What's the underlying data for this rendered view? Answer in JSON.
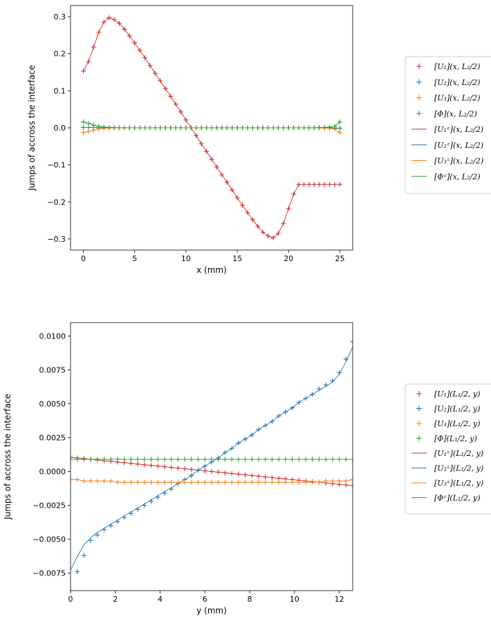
{
  "chart_data": [
    {
      "type": "line",
      "xlabel": "x (mm)",
      "ylabel": "Jumps of accross the interface",
      "xlim": [
        -1.25,
        26.25
      ],
      "ylim": [
        -0.33,
        0.33
      ],
      "xticks": [
        0,
        5,
        10,
        15,
        20,
        25
      ],
      "xtick_labels": [
        "0",
        "5",
        "10",
        "15",
        "20",
        "25"
      ],
      "yticks": [
        -0.3,
        -0.2,
        -0.1,
        0.0,
        0.1,
        0.2,
        0.3
      ],
      "ytick_labels": [
        "−0.3",
        "−0.2",
        "−0.1",
        "0.0",
        "0.1",
        "0.2",
        "0.3"
      ],
      "grid": false,
      "legend_placement": "right",
      "x": [
        0,
        0.5,
        1,
        1.5,
        2,
        2.5,
        3,
        3.5,
        4,
        4.5,
        5,
        5.5,
        6,
        6.5,
        7,
        7.5,
        8,
        8.5,
        9,
        9.5,
        10,
        10.5,
        11,
        11.5,
        12,
        12.5,
        13,
        13.5,
        14,
        14.5,
        15,
        15.5,
        16,
        16.5,
        17,
        17.5,
        18,
        18.5,
        19,
        19.5,
        20,
        20.5,
        21,
        21.5,
        22,
        22.5,
        23,
        23.5,
        24,
        24.5,
        25
      ],
      "series": [
        {
          "name": "[U₁](x, L₂/2)",
          "marker": "+",
          "color": "#d62728",
          "values": [
            0.153,
            0.179,
            0.218,
            0.258,
            0.285,
            0.297,
            0.292,
            0.282,
            0.266,
            0.248,
            0.229,
            0.209,
            0.189,
            0.168,
            0.147,
            0.127,
            0.106,
            0.085,
            0.064,
            0.043,
            0.021,
            0.0,
            -0.021,
            -0.043,
            -0.064,
            -0.085,
            -0.106,
            -0.127,
            -0.147,
            -0.168,
            -0.189,
            -0.209,
            -0.229,
            -0.248,
            -0.266,
            -0.282,
            -0.292,
            -0.297,
            -0.285,
            -0.258,
            -0.218,
            -0.179,
            -0.153,
            -0.153,
            -0.153,
            -0.153,
            -0.153,
            -0.153,
            -0.153,
            -0.153,
            -0.153
          ]
        },
        {
          "name": "[U₂](x, L₂/2)",
          "marker": "+",
          "color": "#1f77b4",
          "values": [
            0.001,
            0.0008,
            0.0005,
            0.0003,
            0.0002,
            0.0001,
            0,
            0,
            0,
            0,
            0,
            0,
            0,
            0,
            0,
            0,
            0,
            0,
            0,
            0,
            0,
            0,
            0,
            0,
            0,
            0,
            0,
            0,
            0,
            0,
            0,
            0,
            0,
            0,
            0,
            0,
            0,
            0,
            0,
            0,
            0,
            0,
            0,
            0,
            0,
            0,
            -0.0001,
            -0.0002,
            -0.0003,
            -0.0005,
            -0.001
          ]
        },
        {
          "name": "[U₃](x, L₂/2)",
          "marker": "+",
          "color": "#ff7f0e",
          "values": [
            -0.013,
            -0.01,
            -0.006,
            -0.003,
            -0.0015,
            -0.0007,
            -0.0003,
            -0.0002,
            -0.0001,
            0,
            0,
            0,
            0,
            0,
            0,
            0,
            0,
            0,
            0,
            0,
            0,
            0,
            0,
            0,
            0,
            0,
            0,
            0,
            0,
            0,
            0,
            0,
            0,
            0,
            0,
            0,
            0,
            0,
            0,
            0,
            0,
            0,
            0,
            0,
            -0.0001,
            -0.0002,
            -0.0003,
            -0.0007,
            -0.0015,
            -0.003,
            -0.013
          ]
        },
        {
          "name": "[Φ](x, L₂/2)",
          "marker": "+",
          "color": "#2ca02c",
          "values": [
            0.016,
            0.012,
            0.007,
            0.004,
            0.002,
            0.001,
            0.0005,
            0.0002,
            0.0001,
            0,
            0,
            0,
            0,
            0,
            0,
            0,
            0,
            0,
            0,
            0,
            0,
            0,
            0,
            0,
            0,
            0,
            0,
            0,
            0,
            0,
            0,
            0,
            0,
            0,
            0,
            0,
            0,
            0,
            0,
            0,
            0,
            0,
            0,
            0,
            0.0001,
            0.0002,
            0.0005,
            0.001,
            0.002,
            0.004,
            0.016
          ]
        },
        {
          "name": "[U₁ᵋ](x, L₂/2)",
          "marker": "line",
          "color": "#d62728",
          "ref": 0
        },
        {
          "name": "[U₂ᵋ](x, L₂/2)",
          "marker": "line",
          "color": "#1f77b4",
          "ref": 1
        },
        {
          "name": "[U₃ᵋ](x, L₂/2)",
          "marker": "line",
          "color": "#ff7f0e",
          "ref": 2
        },
        {
          "name": "[Φᵋ](x, L₂/2)",
          "marker": "line",
          "color": "#2ca02c",
          "ref": 3
        }
      ]
    },
    {
      "type": "line",
      "xlabel": "y (mm)",
      "ylabel": "Jumps of accross the interface",
      "xlim": [
        0,
        12.6
      ],
      "ylim": [
        -0.0088,
        0.011
      ],
      "xticks": [
        0,
        2,
        4,
        6,
        8,
        10,
        12
      ],
      "xtick_labels": [
        "0",
        "2",
        "4",
        "6",
        "8",
        "10",
        "12"
      ],
      "yticks": [
        -0.0075,
        -0.005,
        -0.0025,
        0.0,
        0.0025,
        0.005,
        0.0075,
        0.01
      ],
      "ytick_labels": [
        "−0.0075",
        "−0.0050",
        "−0.0025",
        "0.0000",
        "0.0025",
        "0.0050",
        "0.0075",
        "0.0100"
      ],
      "grid": false,
      "legend_placement": "right",
      "x": [
        0,
        0.3,
        0.6,
        0.9,
        1.2,
        1.5,
        1.8,
        2.1,
        2.4,
        2.7,
        3.0,
        3.3,
        3.6,
        3.9,
        4.2,
        4.5,
        4.8,
        5.1,
        5.4,
        5.7,
        6.0,
        6.3,
        6.6,
        6.9,
        7.2,
        7.5,
        7.8,
        8.1,
        8.4,
        8.7,
        9.0,
        9.3,
        9.6,
        9.9,
        10.2,
        10.5,
        10.8,
        11.1,
        11.4,
        11.7,
        12.0,
        12.3,
        12.6
      ],
      "series": [
        {
          "name": "[U₁](L₁/2, y)",
          "marker": "+",
          "color": "#d62728",
          "values": [
            0.00105,
            0.001,
            0.00095,
            0.0009,
            0.00085,
            0.0008,
            0.00075,
            0.0007,
            0.00065,
            0.0006,
            0.00055,
            0.0005,
            0.00045,
            0.0004,
            0.00035,
            0.0003,
            0.00025,
            0.0002,
            0.00015,
            0.0001,
            5e-05,
            0.0,
            -5e-05,
            -0.0001,
            -0.00015,
            -0.0002,
            -0.00025,
            -0.0003,
            -0.00035,
            -0.0004,
            -0.00045,
            -0.0005,
            -0.00055,
            -0.0006,
            -0.00065,
            -0.0007,
            -0.00075,
            -0.0008,
            -0.00085,
            -0.0009,
            -0.00095,
            -0.001,
            -0.00105
          ]
        },
        {
          "name": "[U₂](L₁/2, y)",
          "marker": "+",
          "color": "#1f77b4",
          "values": [
            -0.0088,
            -0.0074,
            -0.0062,
            -0.0051,
            -0.0047,
            -0.0043,
            -0.004,
            -0.0037,
            -0.0034,
            -0.0031,
            -0.0028,
            -0.0025,
            -0.0022,
            -0.0019,
            -0.0016,
            -0.0013,
            -0.0009,
            -0.0006,
            -0.0003,
            0.0001,
            0.0004,
            0.0007,
            0.001,
            0.0014,
            0.0017,
            0.0021,
            0.0024,
            0.0027,
            0.0031,
            0.0034,
            0.0037,
            0.0041,
            0.0044,
            0.0047,
            0.0051,
            0.0054,
            0.0057,
            0.0061,
            0.0064,
            0.0067,
            0.0073,
            0.0083,
            0.0096
          ]
        },
        {
          "name": "[U₃](L₁/2, y)",
          "marker": "+",
          "color": "#ff7f0e",
          "values": [
            -0.0006,
            -0.0006,
            -0.0007,
            -0.0007,
            -0.0007,
            -0.0007,
            -0.0007,
            -0.0008,
            -0.0008,
            -0.0008,
            -0.0008,
            -0.0008,
            -0.0008,
            -0.0008,
            -0.0008,
            -0.0008,
            -0.0008,
            -0.0008,
            -0.0008,
            -0.0008,
            -0.0008,
            -0.0008,
            -0.0008,
            -0.0008,
            -0.0008,
            -0.0008,
            -0.0008,
            -0.0008,
            -0.0008,
            -0.0008,
            -0.0008,
            -0.0008,
            -0.0008,
            -0.0008,
            -0.0008,
            -0.0008,
            -0.0008,
            -0.0008,
            -0.0007,
            -0.0007,
            -0.0007,
            -0.0007,
            -0.0006
          ]
        },
        {
          "name": "[Φ](L₁/2, y)",
          "marker": "+",
          "color": "#2ca02c",
          "values": [
            0.0009,
            0.0009,
            0.0009,
            0.0009,
            0.0009,
            0.0009,
            0.0009,
            0.0009,
            0.0009,
            0.0009,
            0.0009,
            0.0009,
            0.0009,
            0.0009,
            0.0009,
            0.0009,
            0.0009,
            0.0009,
            0.0009,
            0.0009,
            0.0009,
            0.0009,
            0.0009,
            0.0009,
            0.0009,
            0.0009,
            0.0009,
            0.0009,
            0.0009,
            0.0009,
            0.0009,
            0.0009,
            0.0009,
            0.0009,
            0.0009,
            0.0009,
            0.0009,
            0.0009,
            0.0009,
            0.0009,
            0.0009,
            0.0009,
            0.0009
          ]
        },
        {
          "name": "[U₁ᵋ](L₁/2, y)",
          "marker": "line",
          "color": "#d62728",
          "values": [
            0.00105,
            0.001,
            0.00095,
            0.0009,
            0.00085,
            0.0008,
            0.00075,
            0.0007,
            0.00065,
            0.0006,
            0.00055,
            0.0005,
            0.00045,
            0.0004,
            0.00035,
            0.0003,
            0.00025,
            0.0002,
            0.00015,
            0.0001,
            5e-05,
            0.0,
            -5e-05,
            -0.0001,
            -0.00015,
            -0.0002,
            -0.00025,
            -0.0003,
            -0.00035,
            -0.0004,
            -0.00045,
            -0.0005,
            -0.00055,
            -0.0006,
            -0.00065,
            -0.0007,
            -0.00075,
            -0.0008,
            -0.00085,
            -0.0009,
            -0.00095,
            -0.001,
            -0.00105
          ]
        },
        {
          "name": "[U₂ᵋ](L₁/2, y)",
          "marker": "line",
          "color": "#1f77b4",
          "values": [
            -0.0073,
            -0.0063,
            -0.0054,
            -0.0049,
            -0.0045,
            -0.0042,
            -0.0039,
            -0.0036,
            -0.0033,
            -0.003,
            -0.0027,
            -0.0024,
            -0.0021,
            -0.0018,
            -0.0015,
            -0.0012,
            -0.0009,
            -0.0006,
            -0.0003,
            0.0001,
            0.0004,
            0.0007,
            0.001,
            0.0014,
            0.0017,
            0.0021,
            0.0024,
            0.0027,
            0.0031,
            0.0034,
            0.0037,
            0.0041,
            0.0044,
            0.0047,
            0.0051,
            0.0054,
            0.0057,
            0.006,
            0.0063,
            0.0066,
            0.0072,
            0.0081,
            0.0092
          ]
        },
        {
          "name": "[U₃ᵋ](L₁/2, y)",
          "marker": "line",
          "color": "#ff7f0e",
          "values": [
            -0.0006,
            -0.0006,
            -0.0007,
            -0.0007,
            -0.0007,
            -0.0007,
            -0.0007,
            -0.0008,
            -0.0008,
            -0.0008,
            -0.0008,
            -0.0008,
            -0.0008,
            -0.0008,
            -0.0008,
            -0.0008,
            -0.0008,
            -0.0008,
            -0.0008,
            -0.0008,
            -0.0008,
            -0.0008,
            -0.0008,
            -0.0008,
            -0.0008,
            -0.0008,
            -0.0008,
            -0.0008,
            -0.0008,
            -0.0008,
            -0.0008,
            -0.0008,
            -0.0008,
            -0.0008,
            -0.0008,
            -0.0008,
            -0.0008,
            -0.0008,
            -0.0007,
            -0.0007,
            -0.0007,
            -0.0007,
            -0.0006
          ]
        },
        {
          "name": "[Φᵋ](L₁/2, y)",
          "marker": "line",
          "color": "#2ca02c",
          "values": [
            0.0009,
            0.0009,
            0.0009,
            0.0009,
            0.0009,
            0.0009,
            0.0009,
            0.0009,
            0.0009,
            0.0009,
            0.0009,
            0.0009,
            0.0009,
            0.0009,
            0.0009,
            0.0009,
            0.0009,
            0.0009,
            0.0009,
            0.0009,
            0.0009,
            0.0009,
            0.0009,
            0.0009,
            0.0009,
            0.0009,
            0.0009,
            0.0009,
            0.0009,
            0.0009,
            0.0009,
            0.0009,
            0.0009,
            0.0009,
            0.0009,
            0.0009,
            0.0009,
            0.0009,
            0.0009,
            0.0009,
            0.0009,
            0.0009,
            0.0009
          ]
        }
      ]
    }
  ]
}
